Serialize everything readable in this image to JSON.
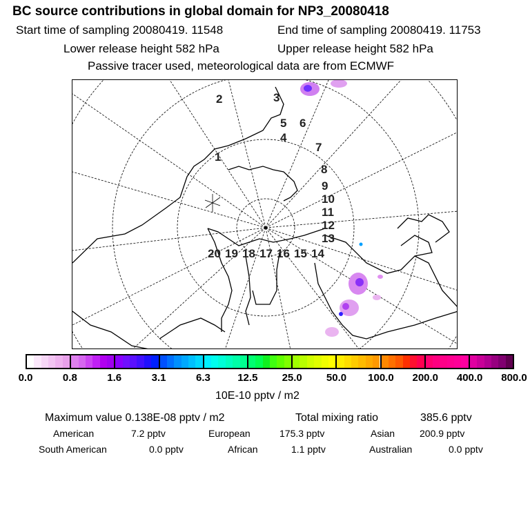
{
  "header": {
    "title": "BC  source contributions in global domain for NP3_20080418",
    "start_label": "Start time of sampling 20080419. 11548",
    "end_label": "End time of sampling 20080419. 11753",
    "lower_label": "Lower release height  582 hPa",
    "upper_label": "Upper release height  582 hPa",
    "note": "Passive tracer used, meteorological data are from ECMWF"
  },
  "map": {
    "trajectory_labels": [
      "1",
      "2",
      "3",
      "4",
      "5",
      "6",
      "7",
      "8",
      "9",
      "10",
      "11",
      "12",
      "13",
      "14",
      "15",
      "16",
      "17",
      "18",
      "19",
      "20"
    ],
    "plume_color": "#cc44ee"
  },
  "colorbar": {
    "ticks": [
      "0.0",
      "0.8",
      "1.6",
      "3.1",
      "6.3",
      "12.5",
      "25.0",
      "50.0",
      "100.0",
      "200.0",
      "400.0",
      "800.0"
    ],
    "unit": "10E-10 pptv / m2",
    "segments": [
      [
        "#ffffff",
        "#fbe8fb",
        "#f6d6f6",
        "#f2c4f2",
        "#eeb2ee",
        "#e8a0ea"
      ],
      [
        "#de80ee",
        "#d666f0",
        "#cc44f2",
        "#c020f4",
        "#b000f0",
        "#a000f0"
      ],
      [
        "#8a00ff",
        "#7010ff",
        "#5a10ff",
        "#4010ff",
        "#2010ff",
        "#0020ff"
      ],
      [
        "#0050ff",
        "#0070ff",
        "#0090ff",
        "#00a8ff",
        "#00c0ff",
        "#00d8ff"
      ],
      [
        "#00f0ff",
        "#00ffee",
        "#00ffd8",
        "#00ffc0",
        "#00ffa8",
        "#00ff90"
      ],
      [
        "#00ff70",
        "#00ff50",
        "#10f020",
        "#40ff10",
        "#60ff00",
        "#80ff00"
      ],
      [
        "#a0ff00",
        "#b8ff00",
        "#d0ff00",
        "#e0ff00",
        "#f0ff00",
        "#ffff00"
      ],
      [
        "#ffee00",
        "#ffdd00",
        "#ffcc00",
        "#ffbb00",
        "#ffaa00",
        "#ff9900"
      ],
      [
        "#ff8800",
        "#ff7000",
        "#ff5800",
        "#ff3000",
        "#ff1030",
        "#ff0050"
      ],
      [
        "#ff0070",
        "#ff0080",
        "#ff0088",
        "#ff0090",
        "#ff0098",
        "#ff00a0"
      ],
      [
        "#e000a0",
        "#c80098",
        "#b00090",
        "#980080",
        "#800070",
        "#600050"
      ]
    ]
  },
  "stats": {
    "max_label": "Maximum value  0.138E-08 pptv / m2",
    "total_label": "Total mixing ratio",
    "total_value": "385.6 pptv",
    "regions": [
      {
        "name": "American",
        "value": "7.2 pptv"
      },
      {
        "name": "European",
        "value": "175.3 pptv"
      },
      {
        "name": "Asian",
        "value": "200.9 pptv"
      },
      {
        "name": "South American",
        "value": "0.0 pptv"
      },
      {
        "name": "African",
        "value": "1.1 pptv"
      },
      {
        "name": "Australian",
        "value": "0.0 pptv"
      }
    ]
  }
}
